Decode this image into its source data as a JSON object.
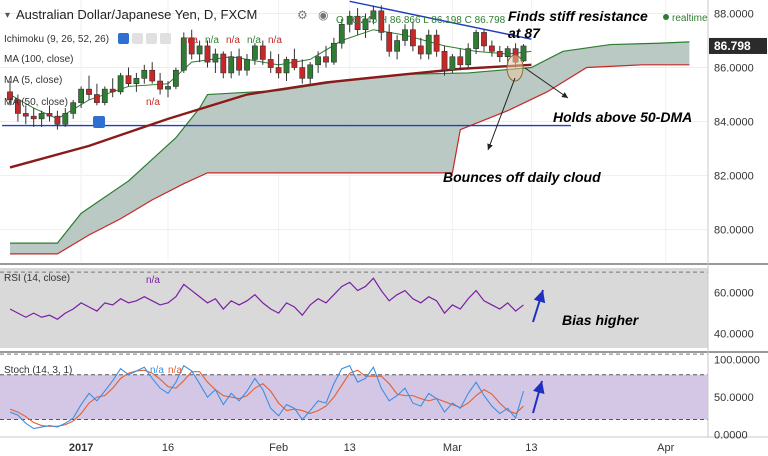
{
  "header": {
    "symbol": "Australian Dollar/Japanese Yen, D, FXCM",
    "ohlc": "O 86.245 H 86.866 L 86.198 C 86.798",
    "realtime": "realtime"
  },
  "indicators": {
    "ichimoku": "Ichimoku (9, 26, 52, 26)",
    "ichimoku_values": [
      "n/a",
      "n/a",
      "n/a",
      "n/a",
      "n/a"
    ],
    "ma100": "MA (100, close)",
    "ma5": "MA (5, close)",
    "ma50": "MA (50, close)",
    "na": "n/a",
    "rsi": "RSI (14, close)",
    "stoch": "Stoch (14, 3, 1)"
  },
  "annotations": {
    "resistance": [
      "Finds stiff resistance",
      "at 87"
    ],
    "dma": "Holds above 50-DMA",
    "cloud": "Bounces off daily cloud",
    "bias": "Bias higher"
  },
  "colors": {
    "up": "#2e7d32",
    "down": "#c62828",
    "ma50": "#8b1a1a",
    "tenkan": "#2e7d32",
    "cloud": "#aebfba",
    "support": "#1f3fbf",
    "trendline": "#1f3fbf",
    "rsi": "#7b1fa2",
    "stoch_k": "#3d8fe0",
    "stoch_d": "#e06030",
    "arrow": "#1f2fbf",
    "price_tag": "#2b2b2b"
  },
  "chart_data": [
    {
      "type": "candlestick",
      "ylim": [
        78.8,
        88.5
      ],
      "y_ticks": [
        "88.0000",
        "86.0000",
        "84.0000",
        "82.0000",
        "80.0000"
      ],
      "y_tick_values": [
        88,
        86,
        84,
        82,
        80
      ],
      "x_ticks": [
        "2017",
        "16",
        "Feb",
        "13",
        "Mar",
        "13",
        "Apr"
      ],
      "x_tick_index": [
        9,
        20,
        34,
        43,
        56,
        66,
        83
      ],
      "last_price": "86.798",
      "last_value": 86.798,
      "support_level": 83.85,
      "trendline": {
        "from": {
          "i": 43,
          "v": 88.45
        },
        "to": {
          "i": 66,
          "v": 87.05
        }
      },
      "candles": [
        {
          "o": 85.1,
          "h": 85.5,
          "l": 84.6,
          "c": 84.8
        },
        {
          "o": 84.8,
          "h": 85.0,
          "l": 84.0,
          "c": 84.3
        },
        {
          "o": 84.3,
          "h": 84.6,
          "l": 83.9,
          "c": 84.2
        },
        {
          "o": 84.2,
          "h": 84.5,
          "l": 83.8,
          "c": 84.1
        },
        {
          "o": 84.1,
          "h": 84.4,
          "l": 83.8,
          "c": 84.3
        },
        {
          "o": 84.3,
          "h": 84.6,
          "l": 84.0,
          "c": 84.2
        },
        {
          "o": 84.2,
          "h": 84.4,
          "l": 83.7,
          "c": 83.9
        },
        {
          "o": 83.9,
          "h": 84.5,
          "l": 83.8,
          "c": 84.3
        },
        {
          "o": 84.3,
          "h": 84.8,
          "l": 84.1,
          "c": 84.7
        },
        {
          "o": 84.7,
          "h": 85.3,
          "l": 84.5,
          "c": 85.2
        },
        {
          "o": 85.2,
          "h": 85.7,
          "l": 84.8,
          "c": 85.0
        },
        {
          "o": 85.0,
          "h": 85.4,
          "l": 84.6,
          "c": 84.7
        },
        {
          "o": 84.7,
          "h": 85.3,
          "l": 84.6,
          "c": 85.2
        },
        {
          "o": 85.2,
          "h": 85.6,
          "l": 84.9,
          "c": 85.1
        },
        {
          "o": 85.1,
          "h": 85.8,
          "l": 85.0,
          "c": 85.7
        },
        {
          "o": 85.7,
          "h": 86.0,
          "l": 85.3,
          "c": 85.4
        },
        {
          "o": 85.4,
          "h": 85.8,
          "l": 85.1,
          "c": 85.6
        },
        {
          "o": 85.6,
          "h": 86.1,
          "l": 85.4,
          "c": 85.9
        },
        {
          "o": 85.9,
          "h": 86.2,
          "l": 85.4,
          "c": 85.5
        },
        {
          "o": 85.5,
          "h": 85.8,
          "l": 85.0,
          "c": 85.2
        },
        {
          "o": 85.2,
          "h": 85.5,
          "l": 84.9,
          "c": 85.3
        },
        {
          "o": 85.3,
          "h": 86.0,
          "l": 85.2,
          "c": 85.9
        },
        {
          "o": 85.9,
          "h": 87.3,
          "l": 85.8,
          "c": 87.1
        },
        {
          "o": 87.1,
          "h": 87.4,
          "l": 86.3,
          "c": 86.5
        },
        {
          "o": 86.5,
          "h": 87.0,
          "l": 86.2,
          "c": 86.8
        },
        {
          "o": 86.8,
          "h": 87.0,
          "l": 86.0,
          "c": 86.2
        },
        {
          "o": 86.2,
          "h": 86.7,
          "l": 85.8,
          "c": 86.5
        },
        {
          "o": 86.5,
          "h": 86.6,
          "l": 85.6,
          "c": 85.8
        },
        {
          "o": 85.8,
          "h": 86.6,
          "l": 85.6,
          "c": 86.4
        },
        {
          "o": 86.4,
          "h": 86.7,
          "l": 85.7,
          "c": 85.9
        },
        {
          "o": 85.9,
          "h": 86.5,
          "l": 85.7,
          "c": 86.3
        },
        {
          "o": 86.3,
          "h": 86.9,
          "l": 86.1,
          "c": 86.8
        },
        {
          "o": 86.8,
          "h": 87.0,
          "l": 86.1,
          "c": 86.3
        },
        {
          "o": 86.3,
          "h": 86.6,
          "l": 85.8,
          "c": 86.0
        },
        {
          "o": 86.0,
          "h": 86.5,
          "l": 85.6,
          "c": 85.8
        },
        {
          "o": 85.8,
          "h": 86.4,
          "l": 85.5,
          "c": 86.3
        },
        {
          "o": 86.3,
          "h": 86.7,
          "l": 85.9,
          "c": 86.0
        },
        {
          "o": 86.0,
          "h": 86.3,
          "l": 85.4,
          "c": 85.6
        },
        {
          "o": 85.6,
          "h": 86.2,
          "l": 85.4,
          "c": 86.1
        },
        {
          "o": 86.1,
          "h": 86.6,
          "l": 85.8,
          "c": 86.4
        },
        {
          "o": 86.4,
          "h": 86.8,
          "l": 86.0,
          "c": 86.2
        },
        {
          "o": 86.2,
          "h": 87.1,
          "l": 86.1,
          "c": 86.9
        },
        {
          "o": 86.9,
          "h": 87.8,
          "l": 86.7,
          "c": 87.6
        },
        {
          "o": 87.6,
          "h": 88.1,
          "l": 87.3,
          "c": 87.9
        },
        {
          "o": 87.9,
          "h": 88.2,
          "l": 87.2,
          "c": 87.4
        },
        {
          "o": 87.4,
          "h": 88.0,
          "l": 87.1,
          "c": 87.8
        },
        {
          "o": 87.8,
          "h": 88.3,
          "l": 87.6,
          "c": 88.1
        },
        {
          "o": 88.1,
          "h": 88.3,
          "l": 87.0,
          "c": 87.3
        },
        {
          "o": 87.3,
          "h": 87.6,
          "l": 86.4,
          "c": 86.6
        },
        {
          "o": 86.6,
          "h": 87.2,
          "l": 86.3,
          "c": 87.0
        },
        {
          "o": 87.0,
          "h": 87.6,
          "l": 86.8,
          "c": 87.4
        },
        {
          "o": 87.4,
          "h": 87.7,
          "l": 86.6,
          "c": 86.8
        },
        {
          "o": 86.8,
          "h": 87.1,
          "l": 86.3,
          "c": 86.5
        },
        {
          "o": 86.5,
          "h": 87.4,
          "l": 86.3,
          "c": 87.2
        },
        {
          "o": 87.2,
          "h": 87.4,
          "l": 86.4,
          "c": 86.6
        },
        {
          "o": 86.6,
          "h": 86.8,
          "l": 85.7,
          "c": 85.9
        },
        {
          "o": 85.9,
          "h": 86.5,
          "l": 85.8,
          "c": 86.4
        },
        {
          "o": 86.4,
          "h": 86.7,
          "l": 85.9,
          "c": 86.1
        },
        {
          "o": 86.1,
          "h": 86.9,
          "l": 86.0,
          "c": 86.7
        },
        {
          "o": 86.7,
          "h": 87.4,
          "l": 86.5,
          "c": 87.3
        },
        {
          "o": 87.3,
          "h": 87.4,
          "l": 86.6,
          "c": 86.8
        },
        {
          "o": 86.8,
          "h": 87.0,
          "l": 86.4,
          "c": 86.6
        },
        {
          "o": 86.6,
          "h": 86.8,
          "l": 86.2,
          "c": 86.4
        },
        {
          "o": 86.4,
          "h": 86.8,
          "l": 86.1,
          "c": 86.7
        },
        {
          "o": 86.7,
          "h": 86.9,
          "l": 86.0,
          "c": 86.2
        },
        {
          "o": 86.245,
          "h": 86.866,
          "l": 86.198,
          "c": 86.798
        }
      ],
      "ma50": [
        {
          "i": 0,
          "v": 82.3
        },
        {
          "i": 10,
          "v": 83.1
        },
        {
          "i": 20,
          "v": 84.1
        },
        {
          "i": 30,
          "v": 85.0
        },
        {
          "i": 40,
          "v": 85.45
        },
        {
          "i": 50,
          "v": 85.75
        },
        {
          "i": 57,
          "v": 85.95
        },
        {
          "i": 66,
          "v": 86.1
        }
      ],
      "tenkan": [
        {
          "i": 0,
          "v": 85.0
        },
        {
          "i": 3,
          "v": 84.5
        },
        {
          "i": 6,
          "v": 84.1
        },
        {
          "i": 10,
          "v": 84.8
        },
        {
          "i": 15,
          "v": 85.3
        },
        {
          "i": 20,
          "v": 85.4
        },
        {
          "i": 23,
          "v": 86.2
        },
        {
          "i": 28,
          "v": 86.4
        },
        {
          "i": 34,
          "v": 86.1
        },
        {
          "i": 38,
          "v": 86.3
        },
        {
          "i": 42,
          "v": 87.0
        },
        {
          "i": 46,
          "v": 87.4
        },
        {
          "i": 50,
          "v": 87.2
        },
        {
          "i": 55,
          "v": 86.8
        },
        {
          "i": 59,
          "v": 86.6
        },
        {
          "i": 63,
          "v": 86.5
        },
        {
          "i": 66,
          "v": 86.6
        }
      ],
      "cloud_upper": [
        {
          "i": 0,
          "v": 79.5
        },
        {
          "i": 6,
          "v": 79.5
        },
        {
          "i": 9,
          "v": 80.6
        },
        {
          "i": 12,
          "v": 81.2
        },
        {
          "i": 15,
          "v": 81.8
        },
        {
          "i": 18,
          "v": 82.6
        },
        {
          "i": 21,
          "v": 83.4
        },
        {
          "i": 24,
          "v": 84.5
        },
        {
          "i": 25,
          "v": 85.0
        },
        {
          "i": 34,
          "v": 85.15
        },
        {
          "i": 42,
          "v": 85.5
        },
        {
          "i": 50,
          "v": 85.75
        },
        {
          "i": 58,
          "v": 85.8
        },
        {
          "i": 66,
          "v": 86.0
        },
        {
          "i": 70,
          "v": 86.6
        },
        {
          "i": 76,
          "v": 86.85
        },
        {
          "i": 82,
          "v": 86.9
        },
        {
          "i": 86,
          "v": 86.95
        }
      ],
      "cloud_lower": [
        {
          "i": 0,
          "v": 79.1
        },
        {
          "i": 6,
          "v": 79.1
        },
        {
          "i": 10,
          "v": 79.8
        },
        {
          "i": 14,
          "v": 80.4
        },
        {
          "i": 18,
          "v": 81.1
        },
        {
          "i": 22,
          "v": 81.7
        },
        {
          "i": 25,
          "v": 82.1
        },
        {
          "i": 56,
          "v": 82.1
        },
        {
          "i": 57,
          "v": 83.7
        },
        {
          "i": 63,
          "v": 84.4
        },
        {
          "i": 68,
          "v": 85.1
        },
        {
          "i": 73,
          "v": 86.0
        },
        {
          "i": 80,
          "v": 86.1
        },
        {
          "i": 86,
          "v": 86.1
        }
      ]
    },
    {
      "type": "line",
      "name": "RSI",
      "ylim": [
        33,
        72
      ],
      "y_ticks": [
        "60.0000",
        "40.0000"
      ],
      "y_tick_values": [
        60,
        40
      ],
      "bands": [
        70,
        30
      ],
      "values": [
        52,
        50,
        48,
        50,
        48,
        49,
        47,
        50,
        52,
        55,
        53,
        51,
        55,
        54,
        57,
        55,
        56,
        58,
        56,
        54,
        55,
        58,
        64,
        61,
        58,
        55,
        57,
        52,
        56,
        54,
        56,
        59,
        55,
        52,
        50,
        55,
        53,
        49,
        54,
        57,
        55,
        59,
        63,
        65,
        61,
        63,
        67,
        61,
        56,
        59,
        61,
        57,
        55,
        58,
        56,
        50,
        54,
        52,
        57,
        61,
        56,
        54,
        52,
        55,
        51,
        54
      ]
    },
    {
      "type": "line",
      "name": "Stoch",
      "ylim": [
        -2,
        105
      ],
      "y_ticks": [
        "100.0000",
        "50.0000",
        "0.0000"
      ],
      "y_tick_values": [
        100,
        50,
        0
      ],
      "bands": [
        80,
        20
      ],
      "series": [
        {
          "values": [
            30,
            26,
            15,
            8,
            10,
            12,
            10,
            15,
            22,
            40,
            55,
            45,
            58,
            72,
            88,
            80,
            85,
            90,
            75,
            62,
            55,
            70,
            92,
            85,
            68,
            50,
            60,
            40,
            55,
            45,
            58,
            75,
            60,
            35,
            25,
            40,
            35,
            20,
            32,
            45,
            42,
            68,
            88,
            92,
            70,
            75,
            90,
            62,
            45,
            52,
            62,
            42,
            38,
            55,
            48,
            30,
            42,
            35,
            55,
            70,
            52,
            38,
            28,
            35,
            22,
            58
          ]
        },
        {
          "values": [
            34,
            30,
            24,
            16,
            12,
            11,
            11,
            13,
            18,
            28,
            42,
            50,
            52,
            62,
            75,
            82,
            85,
            86,
            82,
            74,
            64,
            62,
            72,
            84,
            84,
            70,
            60,
            52,
            50,
            48,
            52,
            62,
            68,
            58,
            42,
            32,
            34,
            32,
            28,
            32,
            38,
            50,
            66,
            82,
            86,
            78,
            78,
            78,
            68,
            54,
            52,
            52,
            48,
            45,
            48,
            44,
            40,
            36,
            42,
            52,
            60,
            54,
            42,
            32,
            28,
            38
          ]
        }
      ]
    }
  ]
}
